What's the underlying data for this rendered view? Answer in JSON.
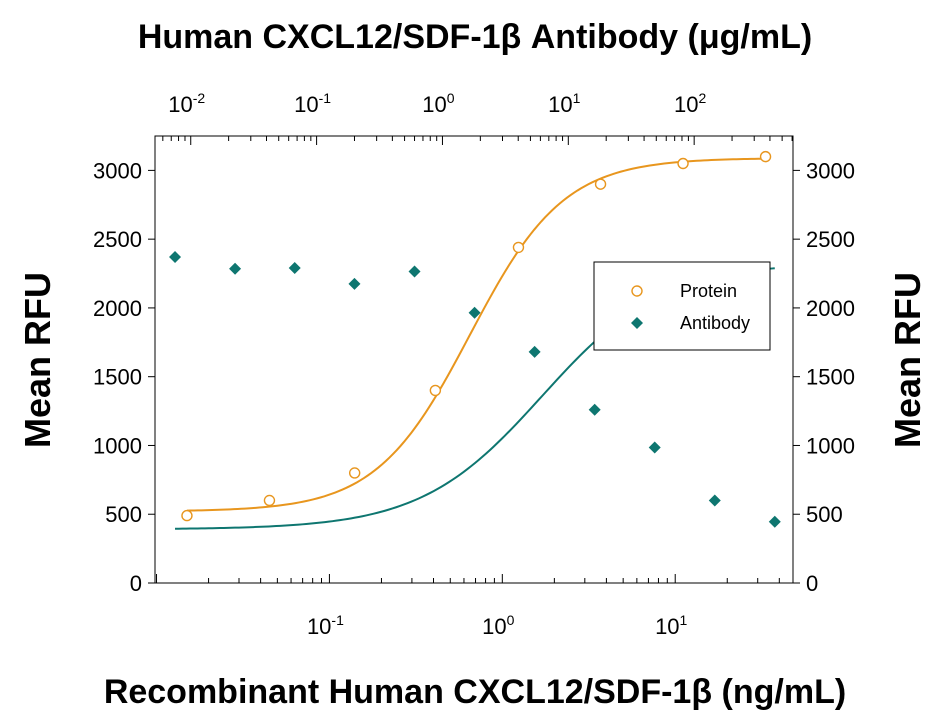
{
  "chart_data": {
    "type": "scatter",
    "title": "Human CXCL12/SDF-1β Antibody (μg/mL)",
    "xlabel": "Recombinant Human CXCL12/SDF-1β (ng/mL)",
    "ylabel_left": "Mean RFU",
    "ylabel_right": "Mean RFU",
    "ylim": [
      0,
      3250
    ],
    "yticks": [
      "0",
      "500",
      "1000",
      "1500",
      "2000",
      "2500",
      "3000"
    ],
    "yticks_right": [
      "0",
      "500",
      "1000",
      "1500",
      "2000",
      "2500",
      "3000"
    ],
    "xaxis_bottom": {
      "scale": "log",
      "range": [
        0.0098,
        48
      ],
      "ticks": [
        {
          "value": 0.1,
          "base": "10",
          "exp": "-1"
        },
        {
          "value": 1,
          "base": "10",
          "exp": "0"
        },
        {
          "value": 10,
          "base": "10",
          "exp": "1"
        }
      ]
    },
    "xaxis_top": {
      "scale": "log",
      "range": [
        0.0052,
        610
      ],
      "ticks": [
        {
          "value": 0.01,
          "base": "10",
          "exp": "-2"
        },
        {
          "value": 0.1,
          "base": "10",
          "exp": "-1"
        },
        {
          "value": 1,
          "base": "10",
          "exp": "0"
        },
        {
          "value": 10,
          "base": "10",
          "exp": "1"
        },
        {
          "value": 100,
          "base": "10",
          "exp": "2"
        }
      ]
    },
    "series": [
      {
        "name": "Protein",
        "axis": "bottom",
        "marker": "open-circle",
        "color": "#e8961e",
        "x": [
          0.015,
          0.045,
          0.14,
          0.41,
          1.24,
          3.7,
          11.1,
          33.3
        ],
        "y": [
          490,
          600,
          800,
          1400,
          2440,
          2900,
          3050,
          3100
        ],
        "fit": {
          "bottom": 520,
          "top": 3090,
          "ec50": 0.65,
          "hill": 1.6
        }
      },
      {
        "name": "Antibody",
        "axis": "top",
        "marker": "filled-diamond",
        "color": "#0e7670",
        "x": [
          0.0075,
          0.0225,
          0.067,
          0.2,
          0.6,
          1.8,
          5.4,
          16.2,
          48.6,
          145.8,
          437
        ],
        "y": [
          2370,
          2285,
          2290,
          2175,
          2265,
          1965,
          1680,
          1260,
          985,
          600,
          445
        ],
        "fit": {
          "bottom": 390,
          "top": 2330,
          "ec50": 6.2,
          "hill": 0.9
        }
      }
    ],
    "legend": {
      "placement": "right-middle",
      "entries": [
        "Protein",
        "Antibody"
      ]
    },
    "grid": false
  }
}
